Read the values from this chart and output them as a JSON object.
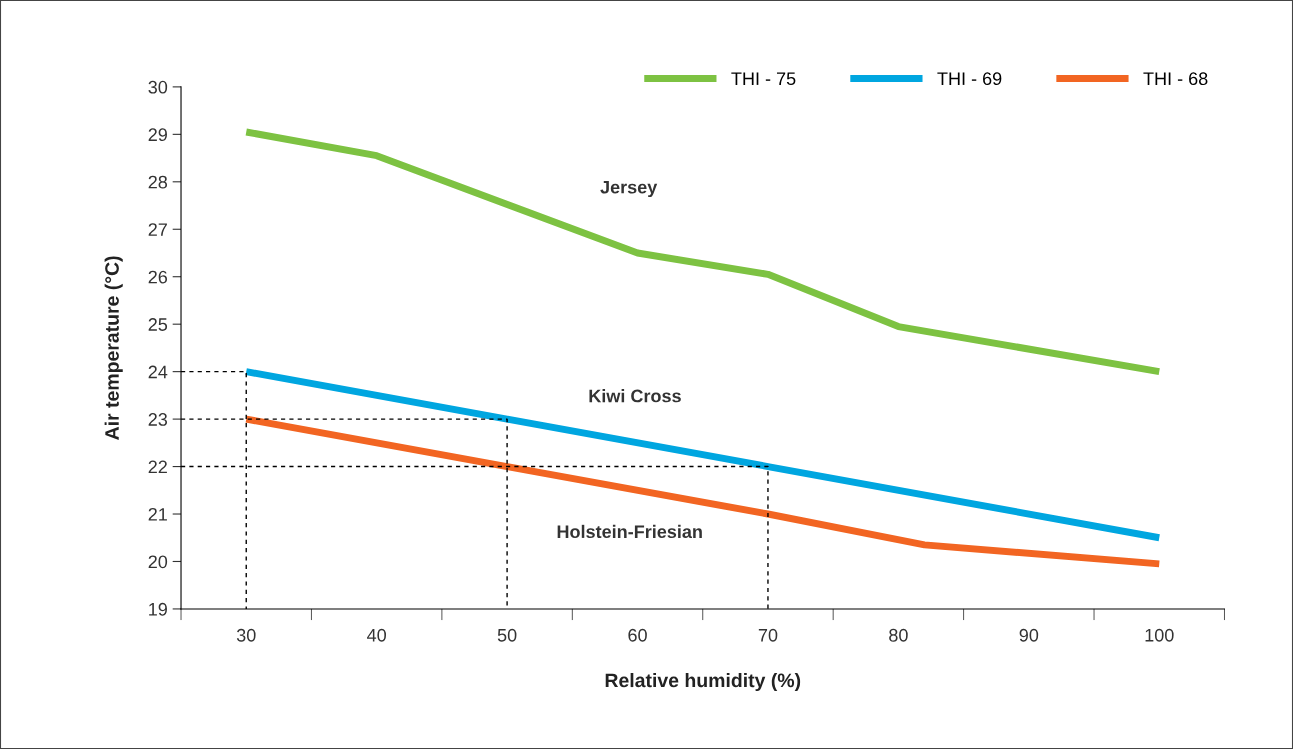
{
  "chart_data": {
    "type": "line",
    "xlabel": "Relative humidity (%)",
    "ylabel": "Air temperature (°C)",
    "xlim": [
      25,
      105
    ],
    "xticks": [
      {
        "value": 25,
        "label": null
      },
      30,
      {
        "value": 35,
        "label": null
      },
      40,
      {
        "value": 45,
        "label": null
      },
      50,
      {
        "value": 55,
        "label": null
      },
      60,
      {
        "value": 65,
        "label": null
      },
      70,
      {
        "value": 75,
        "label": null
      },
      80,
      {
        "value": 85,
        "label": null
      },
      90,
      {
        "value": 95,
        "label": null
      },
      100,
      {
        "value": 105,
        "label": null
      }
    ],
    "ylim": [
      19,
      30
    ],
    "yticks": [
      19,
      20,
      21,
      22,
      23,
      24,
      25,
      26,
      27,
      28,
      29,
      30
    ],
    "grid": false,
    "legend": "top right",
    "line_style": "solid",
    "marker": "none",
    "series": [
      {
        "name": "THI - 75",
        "color": "#7dc242",
        "x": [
          30,
          40,
          60,
          70,
          80,
          100
        ],
        "values": [
          29.05,
          28.55,
          26.5,
          26.05,
          24.95,
          24.0
        ]
      },
      {
        "name": "THI - 69",
        "color": "#00a6e0",
        "x": [
          30,
          50,
          70,
          100
        ],
        "values": [
          24,
          23,
          22,
          20.5
        ]
      },
      {
        "name": "THI - 68",
        "color": "#f26522",
        "x": [
          30,
          50,
          70,
          82,
          100
        ],
        "values": [
          23,
          22,
          21,
          20.35,
          19.95
        ]
      },
      {
        "color": "#000000",
        "line_style": "dashed",
        "x": [
          25,
          30,
          30
        ],
        "values": [
          24,
          24,
          19
        ]
      },
      {
        "color": "#000000",
        "line_style": "dashed",
        "x": [
          25,
          50,
          50
        ],
        "values": [
          23,
          23,
          19
        ]
      },
      {
        "color": "#000000",
        "line_style": "dashed",
        "x": [
          25,
          70,
          70
        ],
        "values": [
          22,
          22,
          19
        ]
      }
    ],
    "annotations": [
      "Jersey",
      "Kiwi Cross",
      "Holstein-Friesian"
    ]
  }
}
